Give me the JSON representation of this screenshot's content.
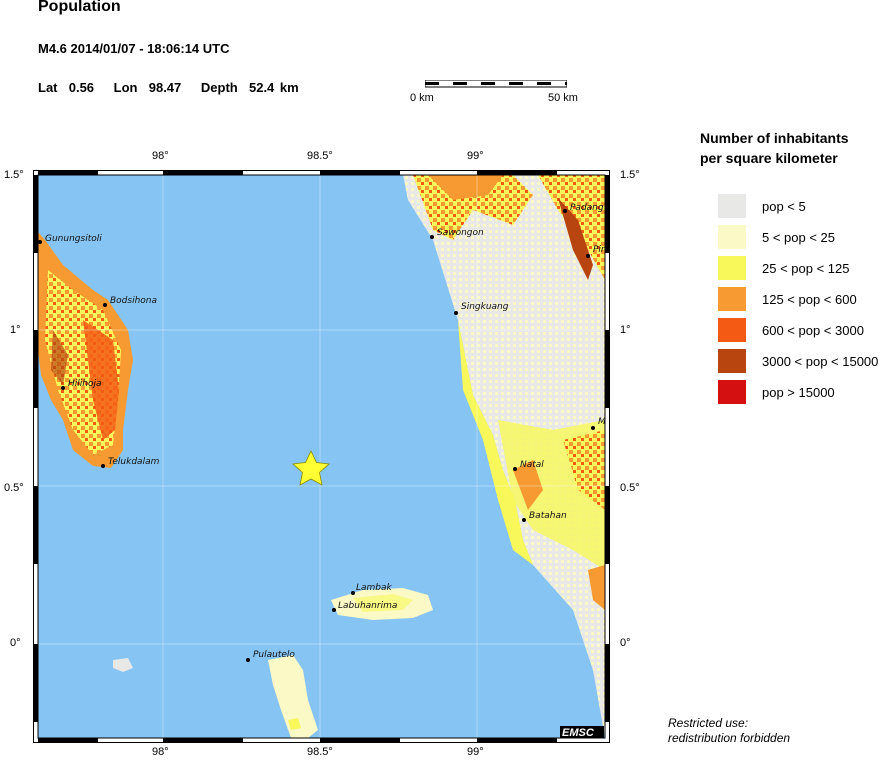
{
  "header": {
    "title": "Population",
    "event": "M4.6  2014/01/07 - 18:06:14 UTC",
    "lat_label": "Lat",
    "lat_value": "0.56",
    "lon_label": "Lon",
    "lon_value": "98.47",
    "depth_label": "Depth",
    "depth_value": "52.4 km"
  },
  "scale": {
    "start": "0 km",
    "end": "50 km"
  },
  "axes": {
    "x_ticks": [
      "98°",
      "98.5°",
      "99°"
    ],
    "y_ticks": [
      "1.5°",
      "1°",
      "0.5°",
      "0°"
    ]
  },
  "legend": {
    "title_line1": "Number of inhabitants",
    "title_line2": "per square kilometer",
    "items": [
      {
        "label": "pop < 5",
        "color": "#e8e8e6"
      },
      {
        "label": "5 < pop < 25",
        "color": "#fbf9c6"
      },
      {
        "label": "25 < pop < 125",
        "color": "#f8f85a"
      },
      {
        "label": "125 < pop < 600",
        "color": "#f89a32"
      },
      {
        "label": "600 < pop < 3000",
        "color": "#f55a14"
      },
      {
        "label": "3000 < pop < 15000",
        "color": "#b84410"
      },
      {
        "label": "pop > 15000",
        "color": "#d41010"
      }
    ]
  },
  "places": [
    "Gunungsitoli",
    "Bodsihona",
    "Hilihoja",
    "Telukdalam",
    "Sawongon",
    "Singkuang",
    "Natal",
    "Batahan",
    "Padang",
    "Pin",
    "M",
    "Lambak",
    "Labuhanrima",
    "Pulautelo"
  ],
  "logo": "EMSC",
  "notice_line1": "Restricted use:",
  "notice_line2": "redistribution forbidden",
  "colors": {
    "sea": "#86c4f4",
    "frame": "#000000",
    "epicenter": "#ffff33"
  }
}
